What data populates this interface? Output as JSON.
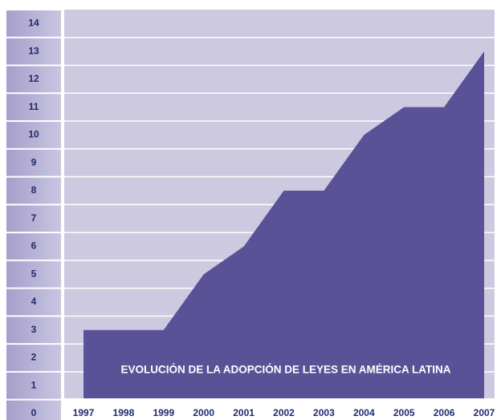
{
  "chart_data": {
    "type": "area",
    "title": "EVOLUCIÓN DE LA ADOPCIÓN DE LEYES EN AMÉRICA LATINA",
    "categories": [
      "1997",
      "1998",
      "1999",
      "2000",
      "2001",
      "2002",
      "2003",
      "2004",
      "2005",
      "2006",
      "2007"
    ],
    "values": [
      3,
      3,
      3,
      5,
      6,
      8,
      8,
      10,
      11,
      11,
      13
    ],
    "color": "#5a5296",
    "ylim": [
      0,
      14.5
    ],
    "yticks": [
      0,
      1,
      2,
      3,
      4,
      5,
      6,
      7,
      8,
      9,
      10,
      11,
      12,
      13,
      14
    ],
    "grid": true
  }
}
